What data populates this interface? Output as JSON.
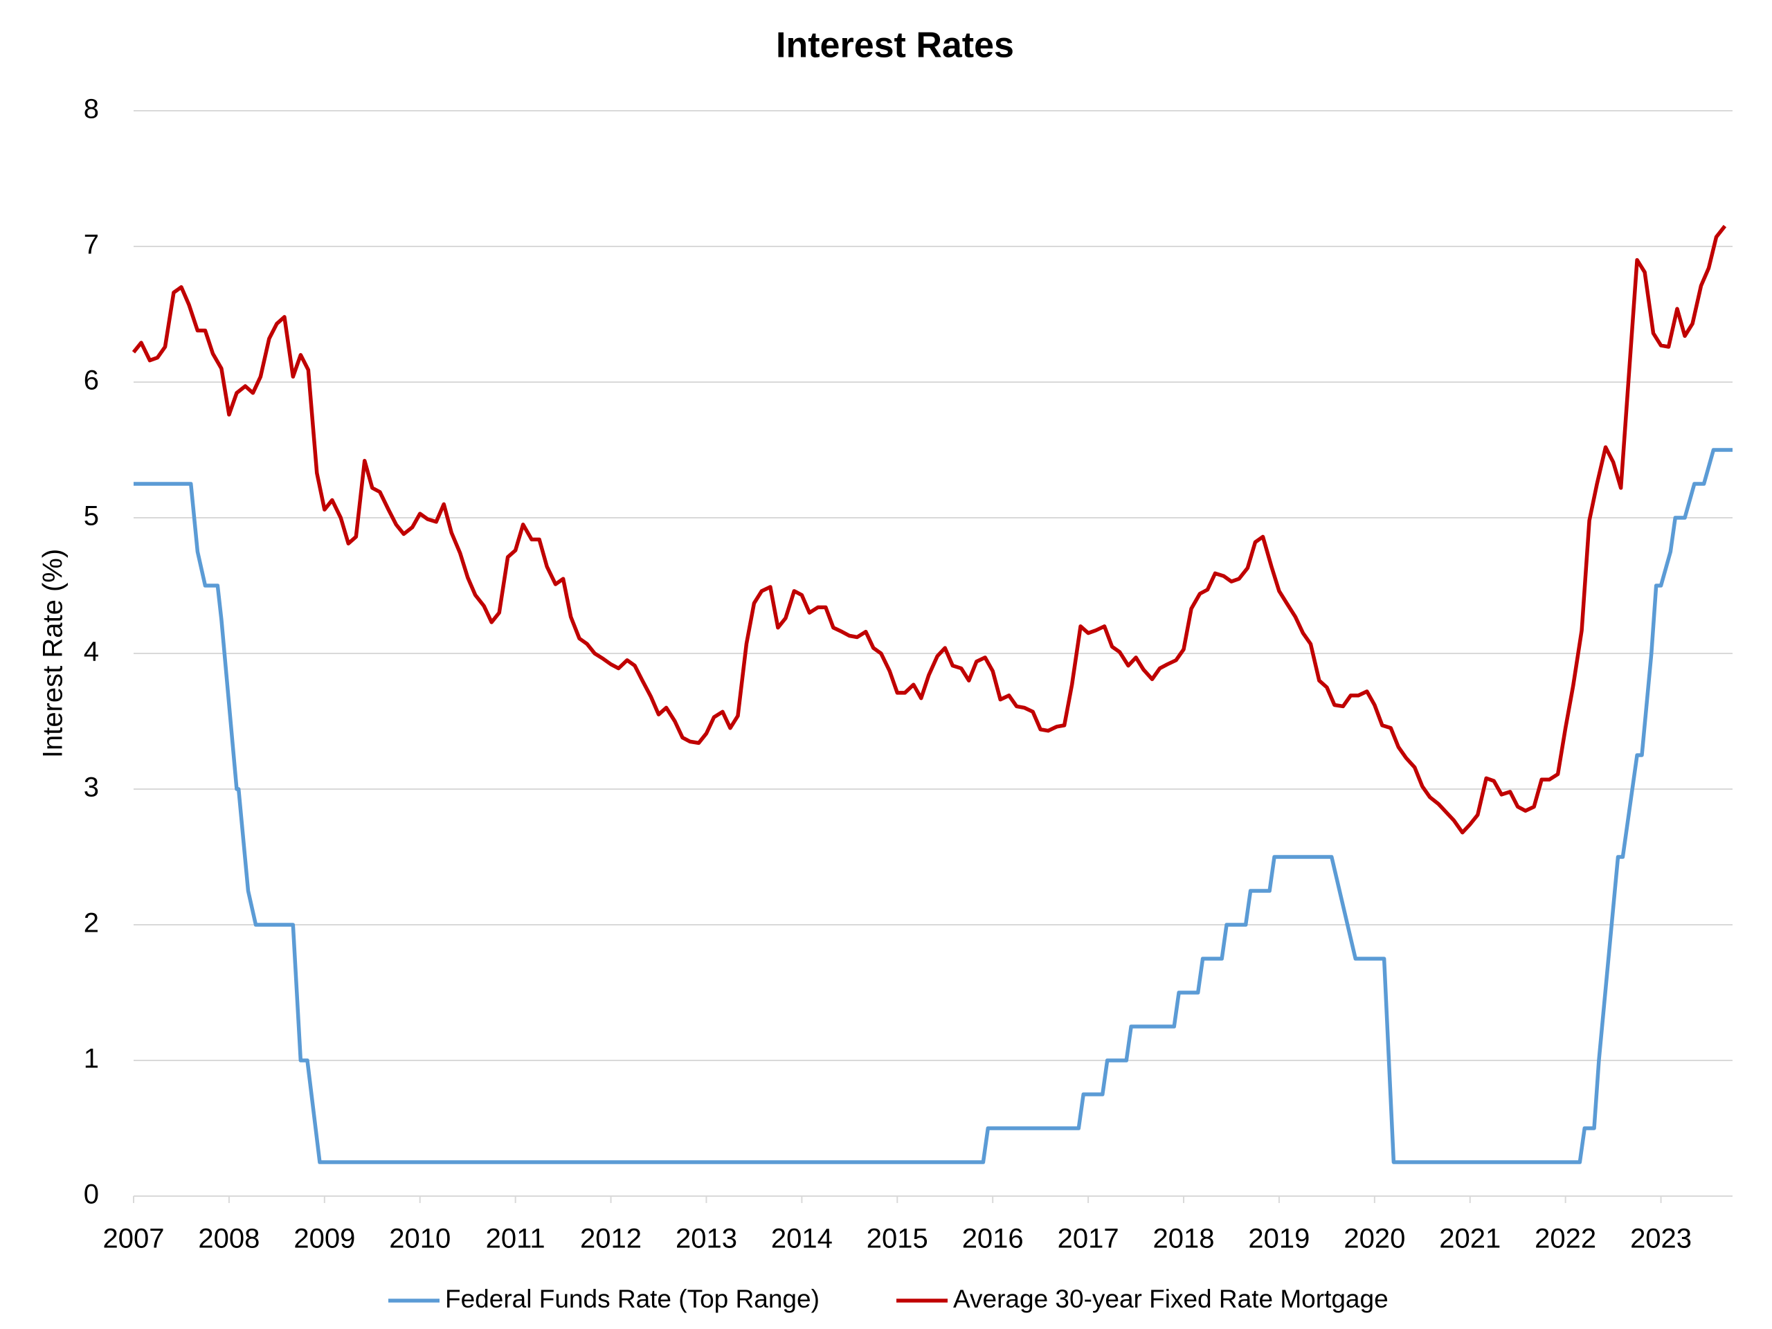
{
  "chart_data": {
    "type": "line",
    "title": "Interest Rates",
    "ylabel": "Interest Rate (%)",
    "xlim": [
      2007,
      2023.75
    ],
    "xticks": [
      2007,
      2008,
      2009,
      2010,
      2011,
      2012,
      2013,
      2014,
      2015,
      2016,
      2017,
      2018,
      2019,
      2020,
      2021,
      2022,
      2023
    ],
    "ylim": [
      0,
      8
    ],
    "yticks": [
      0,
      1,
      2,
      3,
      4,
      5,
      6,
      7,
      8
    ],
    "grid": true,
    "legend": "bottom",
    "series": [
      {
        "name": "Federal Funds Rate (Top Range)",
        "color": "#5b9bd5",
        "x": [
          2007.0,
          2007.6,
          2007.67,
          2007.75,
          2007.88,
          2007.92,
          2008.08,
          2008.1,
          2008.2,
          2008.28,
          2008.67,
          2008.75,
          2008.82,
          2008.95,
          2015.9,
          2015.95,
          2016.9,
          2016.95,
          2017.15,
          2017.2,
          2017.4,
          2017.45,
          2017.9,
          2017.95,
          2018.15,
          2018.2,
          2018.4,
          2018.45,
          2018.65,
          2018.7,
          2018.9,
          2018.95,
          2019.55,
          2019.8,
          2020.1,
          2020.2,
          2022.15,
          2022.2,
          2022.3,
          2022.35,
          2022.45,
          2022.55,
          2022.6,
          2022.75,
          2022.8,
          2022.9,
          2022.95,
          2023.0,
          2023.1,
          2023.15,
          2023.25,
          2023.35,
          2023.45,
          2023.55,
          2023.75
        ],
        "values": [
          5.25,
          5.25,
          4.75,
          4.5,
          4.5,
          4.25,
          3.0,
          3.0,
          2.25,
          2.0,
          2.0,
          1.0,
          1.0,
          0.25,
          0.25,
          0.5,
          0.5,
          0.75,
          0.75,
          1.0,
          1.0,
          1.25,
          1.25,
          1.5,
          1.5,
          1.75,
          1.75,
          2.0,
          2.0,
          2.25,
          2.25,
          2.5,
          2.5,
          1.75,
          1.75,
          0.25,
          0.25,
          0.5,
          0.5,
          1.0,
          1.75,
          2.5,
          2.5,
          3.25,
          3.25,
          4.0,
          4.5,
          4.5,
          4.75,
          5.0,
          5.0,
          5.25,
          5.25,
          5.5,
          5.5
        ]
      },
      {
        "name": "Average 30-year Fixed Rate Mortgage",
        "color": "#c00000",
        "x": [
          2007.0,
          2007.08,
          2007.17,
          2007.25,
          2007.33,
          2007.42,
          2007.5,
          2007.58,
          2007.67,
          2007.75,
          2007.83,
          2007.92,
          2008.0,
          2008.08,
          2008.17,
          2008.25,
          2008.33,
          2008.42,
          2008.5,
          2008.58,
          2008.67,
          2008.75,
          2008.83,
          2008.92,
          2009.0,
          2009.08,
          2009.17,
          2009.25,
          2009.33,
          2009.42,
          2009.5,
          2009.58,
          2009.67,
          2009.75,
          2009.83,
          2009.92,
          2010.0,
          2010.08,
          2010.17,
          2010.25,
          2010.33,
          2010.42,
          2010.5,
          2010.58,
          2010.67,
          2010.75,
          2010.83,
          2010.92,
          2011.0,
          2011.08,
          2011.17,
          2011.25,
          2011.33,
          2011.42,
          2011.5,
          2011.58,
          2011.67,
          2011.75,
          2011.83,
          2011.92,
          2012.0,
          2012.08,
          2012.17,
          2012.25,
          2012.33,
          2012.42,
          2012.5,
          2012.58,
          2012.67,
          2012.75,
          2012.83,
          2012.92,
          2013.0,
          2013.08,
          2013.17,
          2013.25,
          2013.33,
          2013.42,
          2013.5,
          2013.58,
          2013.67,
          2013.75,
          2013.83,
          2013.92,
          2014.0,
          2014.08,
          2014.17,
          2014.25,
          2014.33,
          2014.42,
          2014.5,
          2014.58,
          2014.67,
          2014.75,
          2014.83,
          2014.92,
          2015.0,
          2015.08,
          2015.17,
          2015.25,
          2015.33,
          2015.42,
          2015.5,
          2015.58,
          2015.67,
          2015.75,
          2015.83,
          2015.92,
          2016.0,
          2016.08,
          2016.17,
          2016.25,
          2016.33,
          2016.42,
          2016.5,
          2016.58,
          2016.67,
          2016.75,
          2016.83,
          2016.92,
          2017.0,
          2017.08,
          2017.17,
          2017.25,
          2017.33,
          2017.42,
          2017.5,
          2017.58,
          2017.67,
          2017.75,
          2017.83,
          2017.92,
          2018.0,
          2018.08,
          2018.17,
          2018.25,
          2018.33,
          2018.42,
          2018.5,
          2018.58,
          2018.67,
          2018.75,
          2018.83,
          2018.92,
          2019.0,
          2019.08,
          2019.17,
          2019.25,
          2019.33,
          2019.42,
          2019.5,
          2019.58,
          2019.67,
          2019.75,
          2019.83,
          2019.92,
          2020.0,
          2020.08,
          2020.17,
          2020.25,
          2020.33,
          2020.42,
          2020.5,
          2020.58,
          2020.67,
          2020.75,
          2020.83,
          2020.92,
          2021.0,
          2021.08,
          2021.17,
          2021.25,
          2021.33,
          2021.42,
          2021.5,
          2021.58,
          2021.67,
          2021.75,
          2021.83,
          2021.92,
          2022.0,
          2022.08,
          2022.17,
          2022.25,
          2022.33,
          2022.42,
          2022.5,
          2022.58,
          2022.67,
          2022.75,
          2022.83,
          2022.92,
          2023.0,
          2023.08,
          2023.17,
          2023.25,
          2023.33,
          2023.42,
          2023.5,
          2023.58,
          2023.67
        ],
        "values": [
          6.22,
          6.29,
          6.16,
          6.18,
          6.26,
          6.66,
          6.7,
          6.57,
          6.38,
          6.38,
          6.21,
          6.1,
          5.76,
          5.92,
          5.97,
          5.92,
          6.04,
          6.32,
          6.43,
          6.48,
          6.04,
          6.2,
          6.09,
          5.33,
          5.06,
          5.13,
          5.0,
          4.81,
          4.86,
          5.42,
          5.22,
          5.19,
          5.06,
          4.95,
          4.88,
          4.93,
          5.03,
          4.99,
          4.97,
          5.1,
          4.89,
          4.74,
          4.56,
          4.43,
          4.35,
          4.23,
          4.3,
          4.71,
          4.76,
          4.95,
          4.84,
          4.84,
          4.64,
          4.51,
          4.55,
          4.27,
          4.11,
          4.07,
          4.0,
          3.96,
          3.92,
          3.89,
          3.95,
          3.91,
          3.8,
          3.68,
          3.55,
          3.6,
          3.5,
          3.38,
          3.35,
          3.34,
          3.41,
          3.53,
          3.57,
          3.45,
          3.54,
          4.07,
          4.37,
          4.46,
          4.49,
          4.19,
          4.26,
          4.46,
          4.43,
          4.3,
          4.34,
          4.34,
          4.19,
          4.16,
          4.13,
          4.12,
          4.16,
          4.04,
          4.0,
          3.87,
          3.71,
          3.71,
          3.77,
          3.67,
          3.84,
          3.98,
          4.04,
          3.91,
          3.89,
          3.8,
          3.94,
          3.97,
          3.87,
          3.66,
          3.69,
          3.61,
          3.6,
          3.57,
          3.44,
          3.43,
          3.46,
          3.47,
          3.77,
          4.2,
          4.15,
          4.17,
          4.2,
          4.05,
          4.01,
          3.91,
          3.97,
          3.88,
          3.81,
          3.89,
          3.92,
          3.95,
          4.03,
          4.33,
          4.44,
          4.47,
          4.59,
          4.57,
          4.53,
          4.55,
          4.63,
          4.82,
          4.86,
          4.64,
          4.46,
          4.37,
          4.27,
          4.15,
          4.07,
          3.8,
          3.75,
          3.62,
          3.61,
          3.69,
          3.69,
          3.72,
          3.62,
          3.47,
          3.45,
          3.31,
          3.23,
          3.16,
          3.02,
          2.94,
          2.89,
          2.83,
          2.77,
          2.68,
          2.74,
          2.81,
          3.08,
          3.06,
          2.96,
          2.98,
          2.87,
          2.84,
          2.87,
          3.07,
          3.07,
          3.11,
          3.45,
          3.76,
          4.17,
          4.98,
          5.25,
          5.52,
          5.41,
          5.22,
          6.11,
          6.9,
          6.81,
          6.36,
          6.27,
          6.26,
          6.54,
          6.34,
          6.43,
          6.71,
          6.84,
          7.07,
          7.15
        ]
      }
    ]
  }
}
